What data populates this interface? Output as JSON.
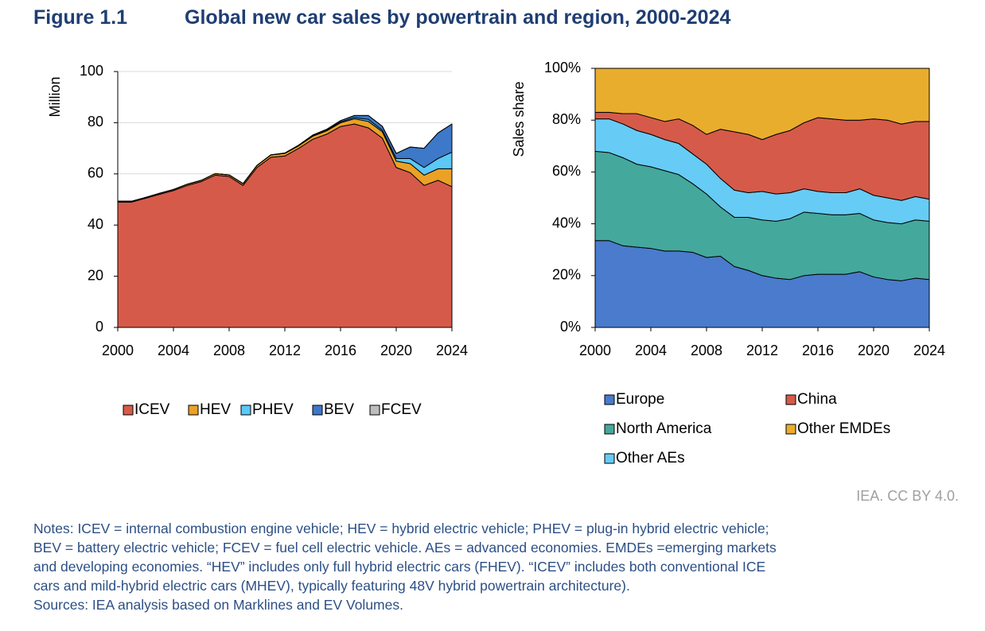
{
  "figure_label": "Figure 1.1",
  "figure_title": "Global new car sales by powertrain and region, 2000-2024",
  "credit": "IEA. CC BY 4.0.",
  "notes": [
    "Notes: ICEV = internal combustion engine vehicle; HEV = hybrid electric vehicle; PHEV = plug-in hybrid electric vehicle;",
    "BEV = battery electric vehicle; FCEV = fuel cell electric vehicle. AEs = advanced economies. EMDEs =emerging markets",
    "and developing economies. “HEV” includes only full hybrid electric cars (FHEV). “ICEV” includes both conventional ICE",
    "cars and mild-hybrid electric cars (MHEV), typically featuring 48V hybrid powertrain architecture).",
    "Sources: IEA analysis based on Marklines and EV Volumes."
  ],
  "chart_data": [
    {
      "type": "stacked_area",
      "y_label": "Million",
      "grid": true,
      "x": [
        2000,
        2001,
        2002,
        2003,
        2004,
        2005,
        2006,
        2007,
        2008,
        2009,
        2010,
        2011,
        2012,
        2013,
        2014,
        2015,
        2016,
        2017,
        2018,
        2019,
        2020,
        2021,
        2022,
        2023,
        2024
      ],
      "xlim": [
        2000,
        2024
      ],
      "xticks": [
        2000,
        2004,
        2008,
        2012,
        2016,
        2020,
        2024
      ],
      "ylim": [
        0,
        100
      ],
      "yticks": [
        0,
        20,
        40,
        60,
        80,
        100
      ],
      "series": [
        {
          "name": "ICEV",
          "color": "#d65a4a",
          "values": [
            49,
            49,
            50.5,
            52,
            53.5,
            55.5,
            57,
            59.5,
            59,
            55.5,
            62.5,
            66.5,
            67,
            70,
            73.5,
            75.5,
            78.5,
            79.5,
            78,
            74,
            62.5,
            60.5,
            55.5,
            57.5,
            55
          ]
        },
        {
          "name": "HEV",
          "color": "#eba125",
          "values": [
            0.3,
            0.3,
            0.3,
            0.4,
            0.4,
            0.5,
            0.5,
            0.6,
            0.6,
            0.7,
            0.8,
            0.9,
            1,
            1,
            1.2,
            1.3,
            1.5,
            2,
            2.5,
            2.5,
            2.5,
            3.5,
            4,
            4.5,
            7
          ]
        },
        {
          "name": "PHEV",
          "color": "#5bc8f5",
          "values": [
            0,
            0,
            0,
            0,
            0,
            0,
            0,
            0,
            0,
            0,
            0,
            0,
            0.05,
            0.1,
            0.15,
            0.2,
            0.3,
            0.5,
            0.8,
            0.6,
            1,
            2,
            3,
            4,
            6.5
          ]
        },
        {
          "name": "BEV",
          "color": "#3e78c8",
          "values": [
            0,
            0,
            0,
            0,
            0,
            0,
            0,
            0,
            0,
            0,
            0,
            0.05,
            0.1,
            0.15,
            0.3,
            0.4,
            0.5,
            0.8,
            1.5,
            1.5,
            2,
            4.5,
            7.5,
            10,
            11
          ]
        },
        {
          "name": "FCEV",
          "color": "#bdbdbd",
          "values": [
            0,
            0,
            0,
            0,
            0,
            0,
            0,
            0,
            0,
            0,
            0,
            0,
            0,
            0,
            0,
            0,
            0,
            0,
            0,
            0,
            0,
            0,
            0,
            0,
            0
          ]
        }
      ]
    },
    {
      "type": "stacked_area",
      "y_label": "Sales share",
      "grid": false,
      "x": [
        2000,
        2001,
        2002,
        2003,
        2004,
        2005,
        2006,
        2007,
        2008,
        2009,
        2010,
        2011,
        2012,
        2013,
        2014,
        2015,
        2016,
        2017,
        2018,
        2019,
        2020,
        2021,
        2022,
        2023,
        2024
      ],
      "xlim": [
        2000,
        2024
      ],
      "xticks": [
        2000,
        2004,
        2008,
        2012,
        2016,
        2020,
        2024
      ],
      "ylim": [
        0,
        100
      ],
      "yticks": [
        {
          "value": 0,
          "label": "0%"
        },
        {
          "value": 20,
          "label": "20%"
        },
        {
          "value": 40,
          "label": "40%"
        },
        {
          "value": 60,
          "label": "60%"
        },
        {
          "value": 80,
          "label": "80%"
        },
        {
          "value": 100,
          "label": "100%"
        }
      ],
      "series": [
        {
          "name": "Europe",
          "color": "#4a7bcc",
          "values": [
            33.5,
            33.5,
            31.5,
            31,
            30.5,
            29.5,
            29.5,
            29,
            27,
            27.5,
            23.5,
            22,
            20,
            19,
            18.5,
            20,
            20.5,
            20.5,
            20.5,
            21.5,
            19.5,
            18.5,
            18,
            19,
            18.5
          ]
        },
        {
          "name": "North America",
          "color": "#45a89c",
          "values": [
            34.5,
            34,
            34,
            32,
            31.5,
            31,
            29.5,
            26.5,
            24.5,
            19,
            19,
            20.5,
            21.5,
            22,
            23.5,
            24.5,
            23.5,
            23,
            23,
            22.5,
            22,
            22,
            22,
            22.5,
            22.5
          ]
        },
        {
          "name": "Other AEs",
          "color": "#66ccf5",
          "values": [
            12.5,
            13,
            13,
            13,
            12.5,
            12,
            12,
            11.5,
            11.5,
            11,
            10.5,
            9.5,
            11,
            10.5,
            10,
            9,
            8.5,
            8.5,
            8.5,
            9.5,
            9.5,
            9.5,
            9,
            9,
            8.5
          ]
        },
        {
          "name": "China",
          "color": "#d65a4a",
          "values": [
            2.5,
            2.5,
            4,
            6.5,
            6.5,
            7,
            9.5,
            11,
            11.5,
            19,
            22.5,
            22.5,
            20,
            23,
            24,
            25.5,
            28.5,
            28.5,
            28,
            26.5,
            29.5,
            30,
            29.5,
            29,
            30
          ]
        },
        {
          "name": "Other EMDEs",
          "color": "#e9ad2d",
          "values": [
            17,
            17,
            17.5,
            17.5,
            19,
            20.5,
            19.5,
            22,
            25.5,
            23.5,
            24.5,
            25.5,
            27.5,
            25.5,
            24,
            21,
            19,
            19.5,
            20,
            20,
            19.5,
            20,
            21.5,
            20.5,
            20.5
          ]
        }
      ]
    }
  ]
}
